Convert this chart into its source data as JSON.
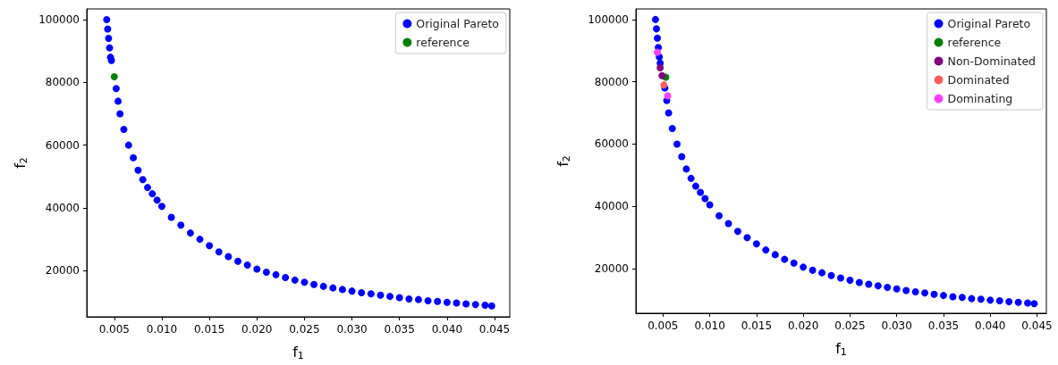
{
  "chart_data": [
    {
      "type": "scatter",
      "xlabel": "f$_{1}$",
      "ylabel": "f$_{2}$",
      "xlim": [
        0.0021,
        0.0466
      ],
      "ylim": [
        5300,
        103400
      ],
      "xticks": [
        {
          "value": 0.005,
          "label": "0.005"
        },
        {
          "value": 0.01,
          "label": "0.010"
        },
        {
          "value": 0.015,
          "label": "0.015"
        },
        {
          "value": 0.02,
          "label": "0.020"
        },
        {
          "value": 0.025,
          "label": "0.025"
        },
        {
          "value": 0.03,
          "label": "0.030"
        },
        {
          "value": 0.035,
          "label": "0.035"
        },
        {
          "value": 0.04,
          "label": "0.040"
        },
        {
          "value": 0.045,
          "label": "0.045"
        }
      ],
      "yticks": [
        20000,
        40000,
        60000,
        80000,
        100000
      ],
      "grid": false,
      "legend": "top right",
      "marker": "circle",
      "series": [
        {
          "name": "Original Pareto",
          "color": "#0000ff",
          "x": [
            0.0042,
            0.0043,
            0.0044,
            0.0045,
            0.0046,
            0.0047,
            0.0052,
            0.0054,
            0.0056,
            0.006,
            0.0065,
            0.007,
            0.0075,
            0.008,
            0.0085,
            0.009,
            0.0095,
            0.01,
            0.011,
            0.012,
            0.013,
            0.014,
            0.015,
            0.016,
            0.017,
            0.018,
            0.019,
            0.02,
            0.021,
            0.022,
            0.023,
            0.024,
            0.025,
            0.026,
            0.027,
            0.028,
            0.029,
            0.03,
            0.031,
            0.032,
            0.033,
            0.034,
            0.035,
            0.036,
            0.037,
            0.038,
            0.039,
            0.04,
            0.041,
            0.042,
            0.043,
            0.044,
            0.0447
          ],
          "values": [
            100000,
            97000,
            94000,
            91000,
            88000,
            87000,
            78000,
            74000,
            70000,
            65000,
            60000,
            56000,
            52000,
            49000,
            46500,
            44500,
            42500,
            40500,
            37000,
            34500,
            32000,
            30000,
            28000,
            26000,
            24500,
            23000,
            21800,
            20500,
            19500,
            18700,
            17800,
            17000,
            16300,
            15600,
            15000,
            14500,
            14000,
            13500,
            13000,
            12600,
            12200,
            11800,
            11400,
            11000,
            10800,
            10400,
            10200,
            9900,
            9700,
            9400,
            9200,
            9000,
            8800
          ]
        },
        {
          "name": "reference",
          "color": "#008000",
          "x": [
            0.005
          ],
          "values": [
            81800
          ]
        }
      ]
    },
    {
      "type": "scatter",
      "xlabel": "f$_{1}$",
      "ylabel": "f$_{2}$",
      "xlim": [
        0.0021,
        0.046
      ],
      "ylim": [
        5700,
        103400
      ],
      "xticks": [
        {
          "value": 0.005,
          "label": "0.005"
        },
        {
          "value": 0.01,
          "label": "0.010"
        },
        {
          "value": 0.015,
          "label": "0.015"
        },
        {
          "value": 0.02,
          "label": "0.020"
        },
        {
          "value": 0.025,
          "label": "0.025"
        },
        {
          "value": 0.03,
          "label": "0.030"
        },
        {
          "value": 0.035,
          "label": "0.035"
        },
        {
          "value": 0.04,
          "label": "0.040"
        },
        {
          "value": 0.045,
          "label": "0.045"
        }
      ],
      "yticks": [
        20000,
        40000,
        60000,
        80000,
        100000
      ],
      "grid": false,
      "legend": "top right",
      "marker": "circle",
      "series": [
        {
          "name": "Original Pareto",
          "color": "#0000ff",
          "x": [
            0.0042,
            0.0043,
            0.0044,
            0.0045,
            0.0046,
            0.0047,
            0.0052,
            0.0054,
            0.0056,
            0.006,
            0.0065,
            0.007,
            0.0075,
            0.008,
            0.0085,
            0.009,
            0.0095,
            0.01,
            0.011,
            0.012,
            0.013,
            0.014,
            0.015,
            0.016,
            0.017,
            0.018,
            0.019,
            0.02,
            0.021,
            0.022,
            0.023,
            0.024,
            0.025,
            0.026,
            0.027,
            0.028,
            0.029,
            0.03,
            0.031,
            0.032,
            0.033,
            0.034,
            0.035,
            0.036,
            0.037,
            0.038,
            0.039,
            0.04,
            0.041,
            0.042,
            0.043,
            0.044,
            0.0447
          ],
          "values": [
            100000,
            97000,
            94000,
            91000,
            88000,
            86000,
            78000,
            74000,
            70000,
            65000,
            60000,
            56000,
            52000,
            49000,
            46500,
            44500,
            42500,
            40500,
            37000,
            34500,
            32000,
            30000,
            28000,
            26000,
            24500,
            23000,
            21800,
            20500,
            19500,
            18700,
            17800,
            17000,
            16300,
            15600,
            15000,
            14500,
            14000,
            13500,
            13000,
            12600,
            12200,
            11800,
            11400,
            11000,
            10800,
            10400,
            10200,
            9900,
            9700,
            9400,
            9200,
            9000,
            8800
          ]
        },
        {
          "name": "reference",
          "color": "#008000",
          "x": [
            0.0053
          ],
          "values": [
            81500
          ]
        },
        {
          "name": "Non-Dominated",
          "color": "#800080",
          "x": [
            0.0047,
            0.0049
          ],
          "values": [
            84500,
            82000
          ]
        },
        {
          "name": "Dominated",
          "color": "#ff6060",
          "x": [
            0.0051
          ],
          "values": [
            79000
          ]
        },
        {
          "name": "Dominating",
          "color": "#ff40ff",
          "x": [
            0.0044,
            0.0055
          ],
          "values": [
            89500,
            75500
          ]
        }
      ]
    }
  ]
}
